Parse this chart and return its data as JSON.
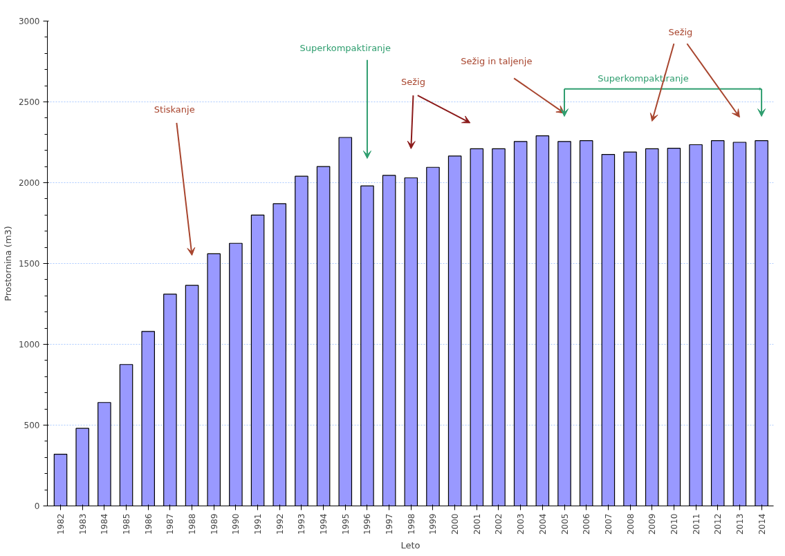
{
  "chart_data": {
    "type": "bar",
    "xlabel": "Leto",
    "ylabel": "Prostornina (m3)",
    "categories": [
      "1982",
      "1983",
      "1984",
      "1985",
      "1986",
      "1987",
      "1988",
      "1989",
      "1990",
      "1991",
      "1992",
      "1993",
      "1994",
      "1995",
      "1996",
      "1997",
      "1998",
      "1999",
      "2000",
      "2001",
      "2002",
      "2003",
      "2004",
      "2005",
      "2006",
      "2007",
      "2008",
      "2009",
      "2010",
      "2011",
      "2012",
      "2013",
      "2014"
    ],
    "values": [
      320,
      480,
      640,
      875,
      1080,
      1310,
      1365,
      1560,
      1625,
      1800,
      1870,
      2040,
      2100,
      2280,
      1980,
      2045,
      2030,
      2095,
      2165,
      2210,
      2210,
      2255,
      2290,
      2255,
      2260,
      2175,
      2190,
      2210,
      2213,
      2235,
      2260,
      2250,
      2260
    ],
    "color": "#9999ff",
    "ylim": [
      0,
      3000
    ],
    "yticks": [
      0,
      500,
      1000,
      1500,
      2000,
      2500,
      3000
    ],
    "grid": "y",
    "annotations": [
      "Stiskanje",
      "Superkompaktiranje",
      "Sežig",
      "Sežig in taljenje",
      "Superkompaktiranje",
      "Sežig"
    ]
  }
}
